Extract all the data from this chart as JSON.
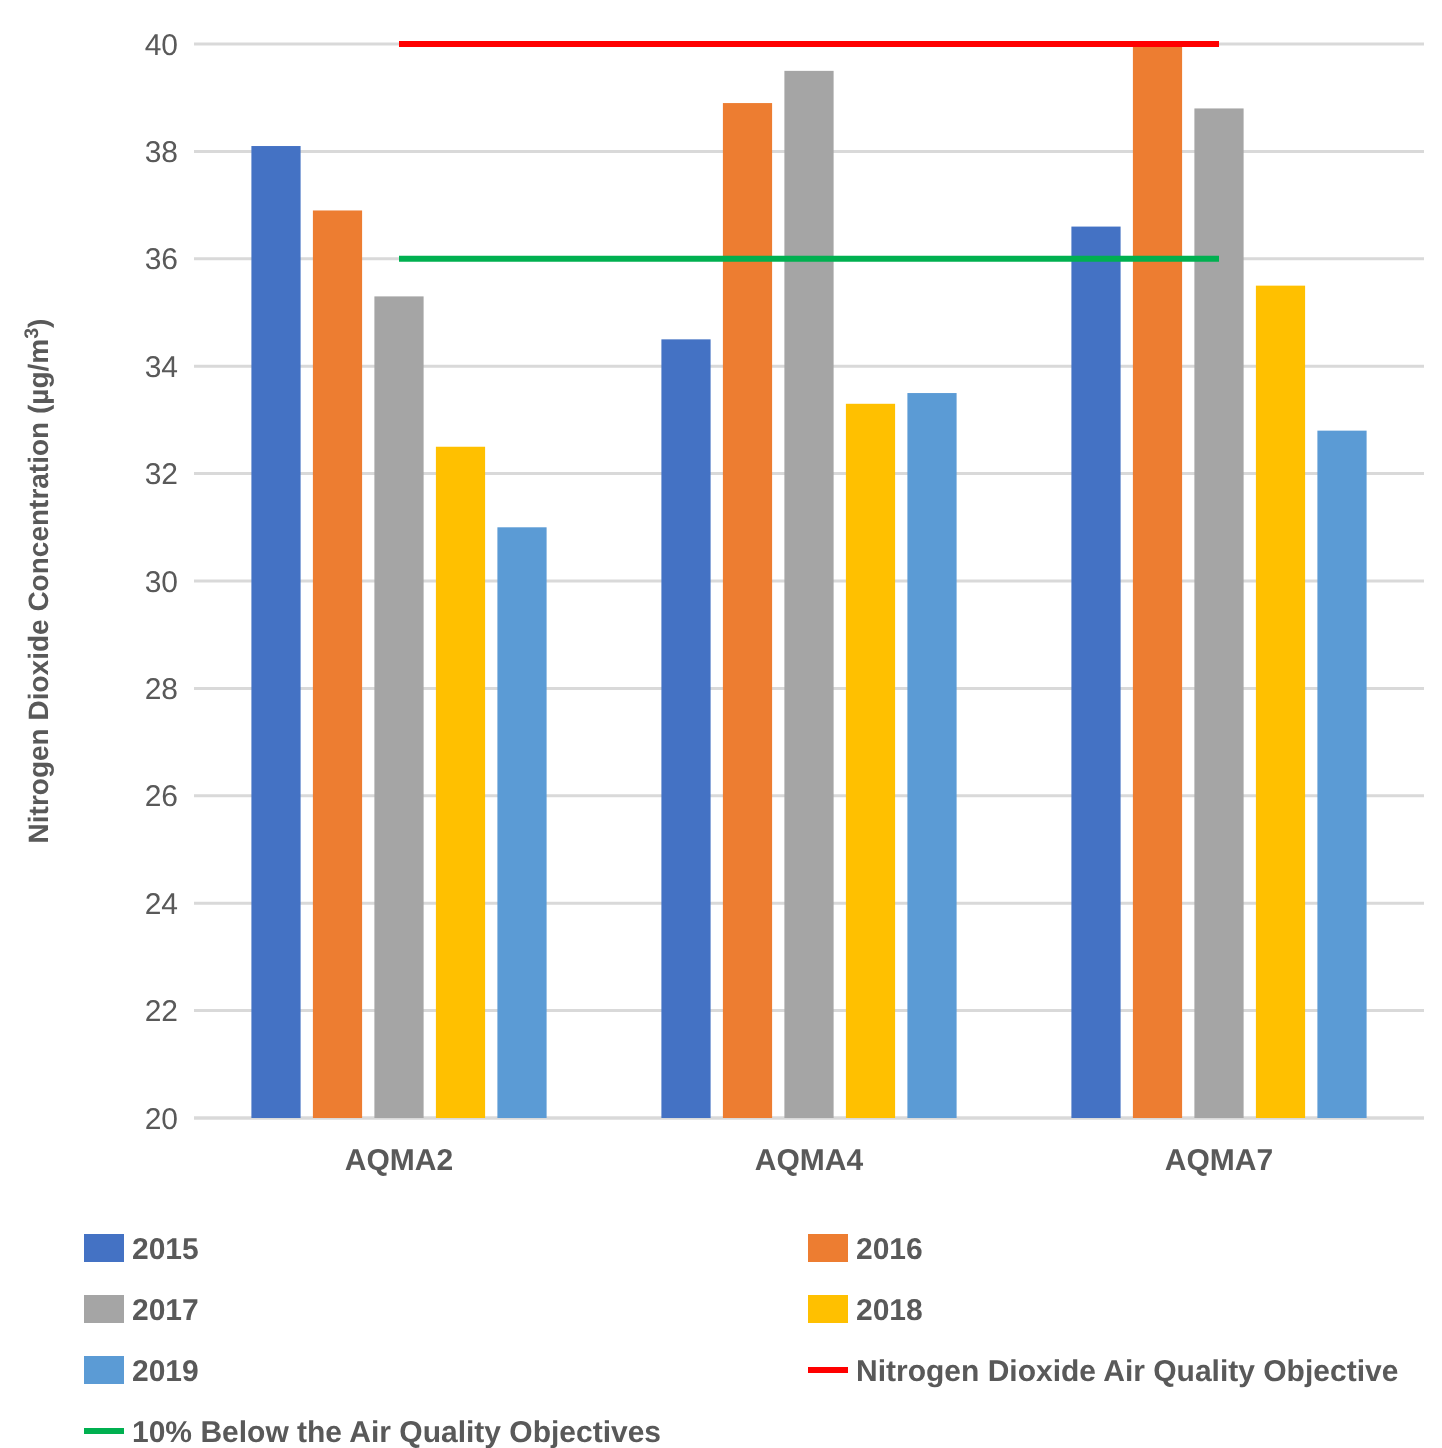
{
  "chart_data": {
    "type": "bar",
    "ylabel": "Nitrogen Dioxide Concentration (µg/m$^{3}$)",
    "categories": [
      "AQMA2",
      "AQMA4",
      "AQMA7"
    ],
    "series": [
      {
        "name": "2015",
        "color": "#4472c4",
        "values": [
          38.1,
          34.5,
          36.6
        ]
      },
      {
        "name": "2016",
        "color": "#ed7d31",
        "values": [
          36.9,
          38.9,
          40
        ]
      },
      {
        "name": "2017",
        "color": "#a5a5a5",
        "values": [
          35.3,
          39.5,
          38.8
        ]
      },
      {
        "name": "2018",
        "color": "#ffc000",
        "values": [
          32.5,
          33.3,
          35.5
        ]
      },
      {
        "name": "2019",
        "color": "#5b9bd5",
        "values": [
          31.0,
          33.5,
          32.8
        ]
      },
      {
        "name": "Nitrogen Dioxide Air Quality Objective",
        "type": "line",
        "color": "#ff0000",
        "values": [
          40,
          40,
          40
        ]
      },
      {
        "name": "10% Below the Air Quality Objectives",
        "type": "line",
        "color": "#00b050",
        "values": [
          36,
          36,
          36
        ]
      }
    ],
    "ylim": [
      20,
      40
    ],
    "yticks": [
      20,
      22,
      24,
      26,
      28,
      30,
      32,
      34,
      36,
      38,
      40
    ],
    "grid": "y",
    "legend": "bottom",
    "marker": "none",
    "line_style": "solid"
  }
}
